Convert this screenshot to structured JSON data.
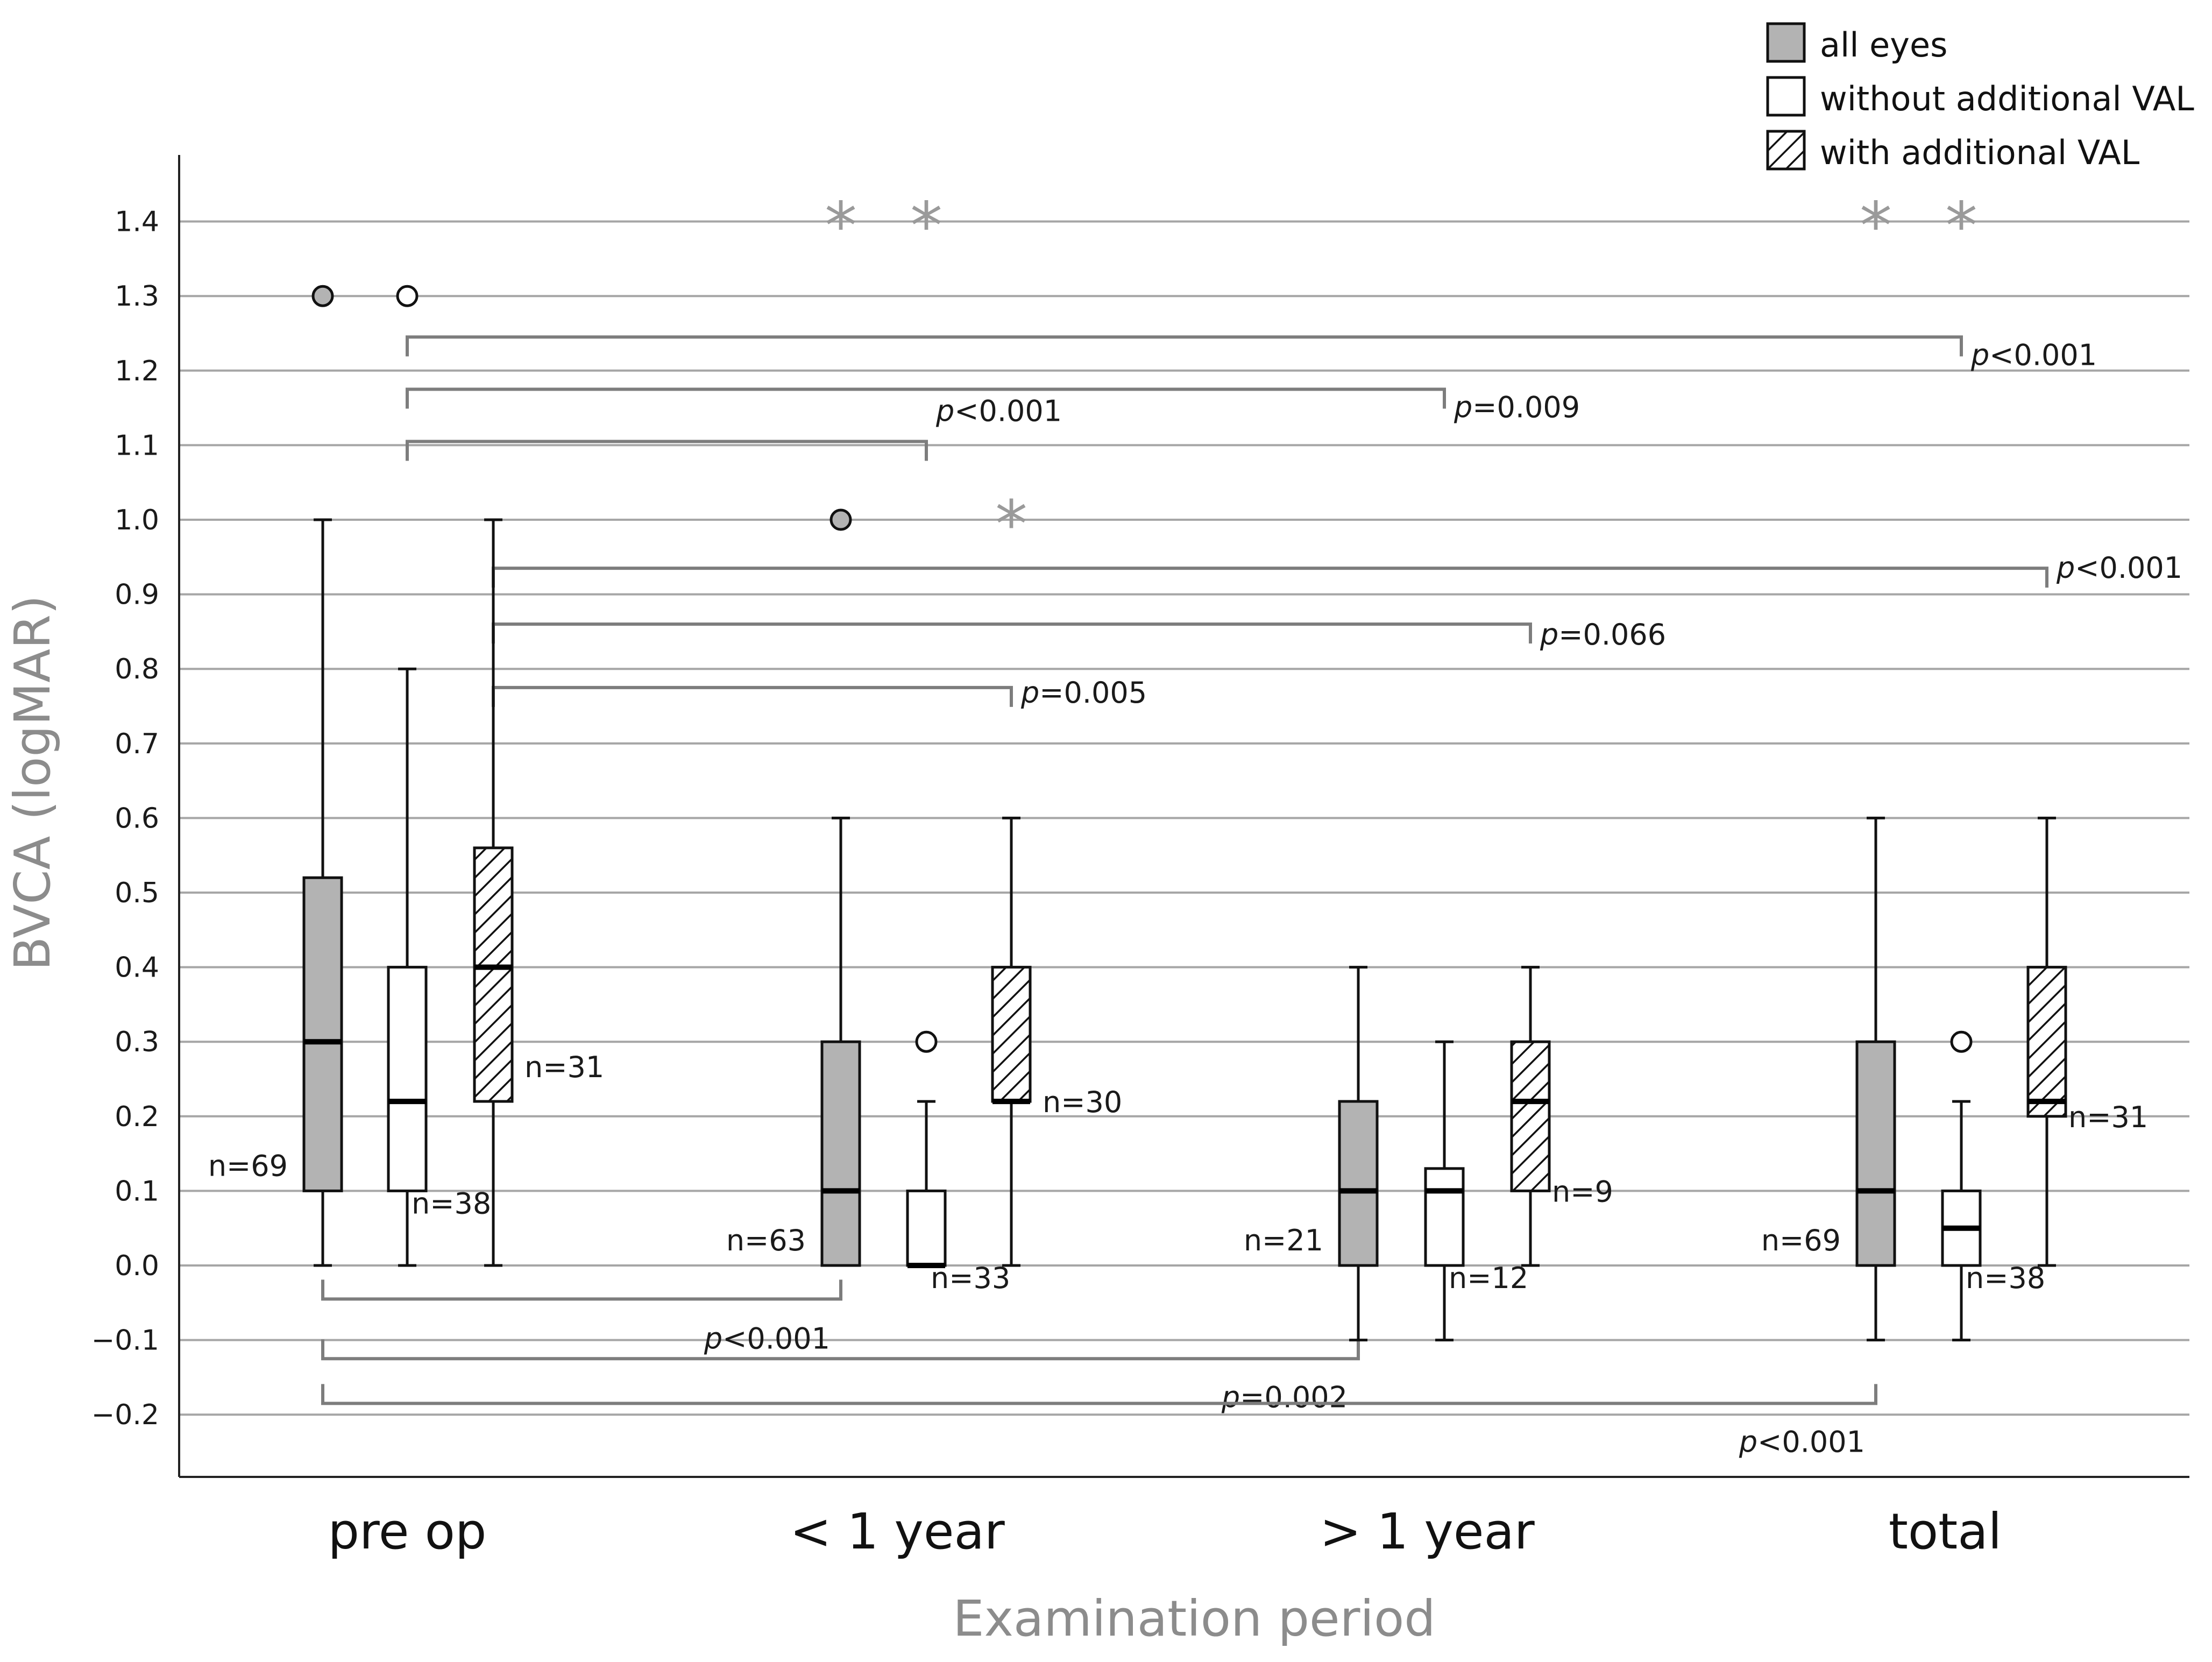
{
  "chart_data": {
    "type": "boxplot",
    "xlabel": "Examination period",
    "ylabel": "BVCA (logMAR)",
    "ylim": [
      -0.29,
      1.5
    ],
    "yticks": [
      "1.4",
      "1.3",
      "1.2",
      "1.1",
      "1.0",
      "0.9",
      "0.8",
      "0.7",
      "0.6",
      "0.5",
      "0.4",
      "0.3",
      "0.2",
      "0.1",
      "0.0",
      "−0.1",
      "−0.2"
    ],
    "ytick_values": [
      1.4,
      1.3,
      1.2,
      1.1,
      1.0,
      0.9,
      0.8,
      0.7,
      0.6,
      0.5,
      0.4,
      0.3,
      0.2,
      0.1,
      0.0,
      -0.1,
      -0.2
    ],
    "grid": true,
    "legend_position": "top-right",
    "categories": [
      "pre op",
      "< 1 year",
      "> 1 year",
      "total"
    ],
    "series": [
      {
        "name": "all eyes",
        "fill": "#b3b3b3",
        "pattern": "solid",
        "boxes": [
          {
            "min": 0.0,
            "q1": 0.1,
            "median": 0.3,
            "q3": 0.52,
            "max": 1.0,
            "n": "n=69",
            "outliers": [
              1.3
            ],
            "extremes": []
          },
          {
            "min": 0.0,
            "q1": 0.0,
            "median": 0.1,
            "q3": 0.3,
            "max": 0.6,
            "n": "n=63",
            "outliers": [
              1.0
            ],
            "extremes": [
              1.4
            ]
          },
          {
            "min": -0.1,
            "q1": 0.0,
            "median": 0.1,
            "q3": 0.22,
            "max": 0.4,
            "n": "n=21",
            "outliers": [],
            "extremes": []
          },
          {
            "min": -0.1,
            "q1": 0.0,
            "median": 0.1,
            "q3": 0.3,
            "max": 0.6,
            "n": "n=69",
            "outliers": [],
            "extremes": [
              1.4
            ]
          }
        ]
      },
      {
        "name": "without additional VAL",
        "fill": "#ffffff",
        "pattern": "none",
        "boxes": [
          {
            "min": 0.0,
            "q1": 0.1,
            "median": 0.22,
            "q3": 0.4,
            "max": 0.8,
            "n": "n=38",
            "outliers": [
              1.3
            ],
            "extremes": []
          },
          {
            "min": 0.0,
            "q1": 0.0,
            "median": 0.0,
            "q3": 0.1,
            "max": 0.22,
            "n": "n=33",
            "outliers": [
              0.3
            ],
            "extremes": [
              1.4
            ]
          },
          {
            "min": -0.1,
            "q1": 0.0,
            "median": 0.1,
            "q3": 0.13,
            "max": 0.3,
            "n": "n=12",
            "outliers": [],
            "extremes": []
          },
          {
            "min": -0.1,
            "q1": 0.0,
            "median": 0.05,
            "q3": 0.1,
            "max": 0.22,
            "n": "n=38",
            "outliers": [
              0.3
            ],
            "extremes": [
              1.4
            ]
          }
        ]
      },
      {
        "name": "with additional VAL",
        "fill": "#ffffff",
        "pattern": "hatch",
        "boxes": [
          {
            "min": 0.0,
            "q1": 0.22,
            "median": 0.4,
            "q3": 0.56,
            "max": 1.0,
            "n": "n=31",
            "outliers": [],
            "extremes": []
          },
          {
            "min": 0.0,
            "q1": 0.22,
            "median": 0.22,
            "q3": 0.4,
            "max": 0.6,
            "n": "n=30",
            "outliers": [],
            "extremes": [
              1.0
            ]
          },
          {
            "min": 0.0,
            "q1": 0.1,
            "median": 0.22,
            "q3": 0.3,
            "max": 0.4,
            "n": "n=9",
            "outliers": [],
            "extremes": []
          },
          {
            "min": 0.0,
            "q1": 0.2,
            "median": 0.22,
            "q3": 0.4,
            "max": 0.6,
            "n": "n=31",
            "outliers": [],
            "extremes": []
          }
        ]
      }
    ],
    "comparisons": [
      {
        "from": [
          0,
          1
        ],
        "to": [
          3,
          1
        ],
        "y": 1.245,
        "side": "above",
        "p_var": "p",
        "p_rest": "<0.001"
      },
      {
        "from": [
          0,
          1
        ],
        "to": [
          2,
          1
        ],
        "y": 1.175,
        "side": "above",
        "p_var": "p",
        "p_rest": "=0.009"
      },
      {
        "from": [
          0,
          1
        ],
        "to": [
          1,
          1
        ],
        "y": 1.105,
        "side": "above",
        "p_var": "p",
        "p_rest": "<0.001"
      },
      {
        "from": [
          0,
          2
        ],
        "to": [
          3,
          2
        ],
        "y": 0.935,
        "side": "above",
        "p_var": "p",
        "p_rest": "<0.001"
      },
      {
        "from": [
          0,
          2
        ],
        "to": [
          2,
          2
        ],
        "y": 0.86,
        "side": "above",
        "p_var": "p",
        "p_rest": "=0.066"
      },
      {
        "from": [
          0,
          2
        ],
        "to": [
          1,
          2
        ],
        "y": 0.775,
        "side": "above",
        "p_var": "p",
        "p_rest": "=0.005"
      },
      {
        "from": [
          0,
          0
        ],
        "to": [
          1,
          0
        ],
        "y": -0.045,
        "side": "below",
        "p_var": "p",
        "p_rest": "<0.001"
      },
      {
        "from": [
          0,
          0
        ],
        "to": [
          2,
          0
        ],
        "y": -0.125,
        "side": "below",
        "p_var": "p",
        "p_rest": "=0.002"
      },
      {
        "from": [
          0,
          0
        ],
        "to": [
          3,
          0
        ],
        "y": -0.185,
        "side": "below",
        "p_var": "p",
        "p_rest": "<0.001"
      }
    ]
  }
}
